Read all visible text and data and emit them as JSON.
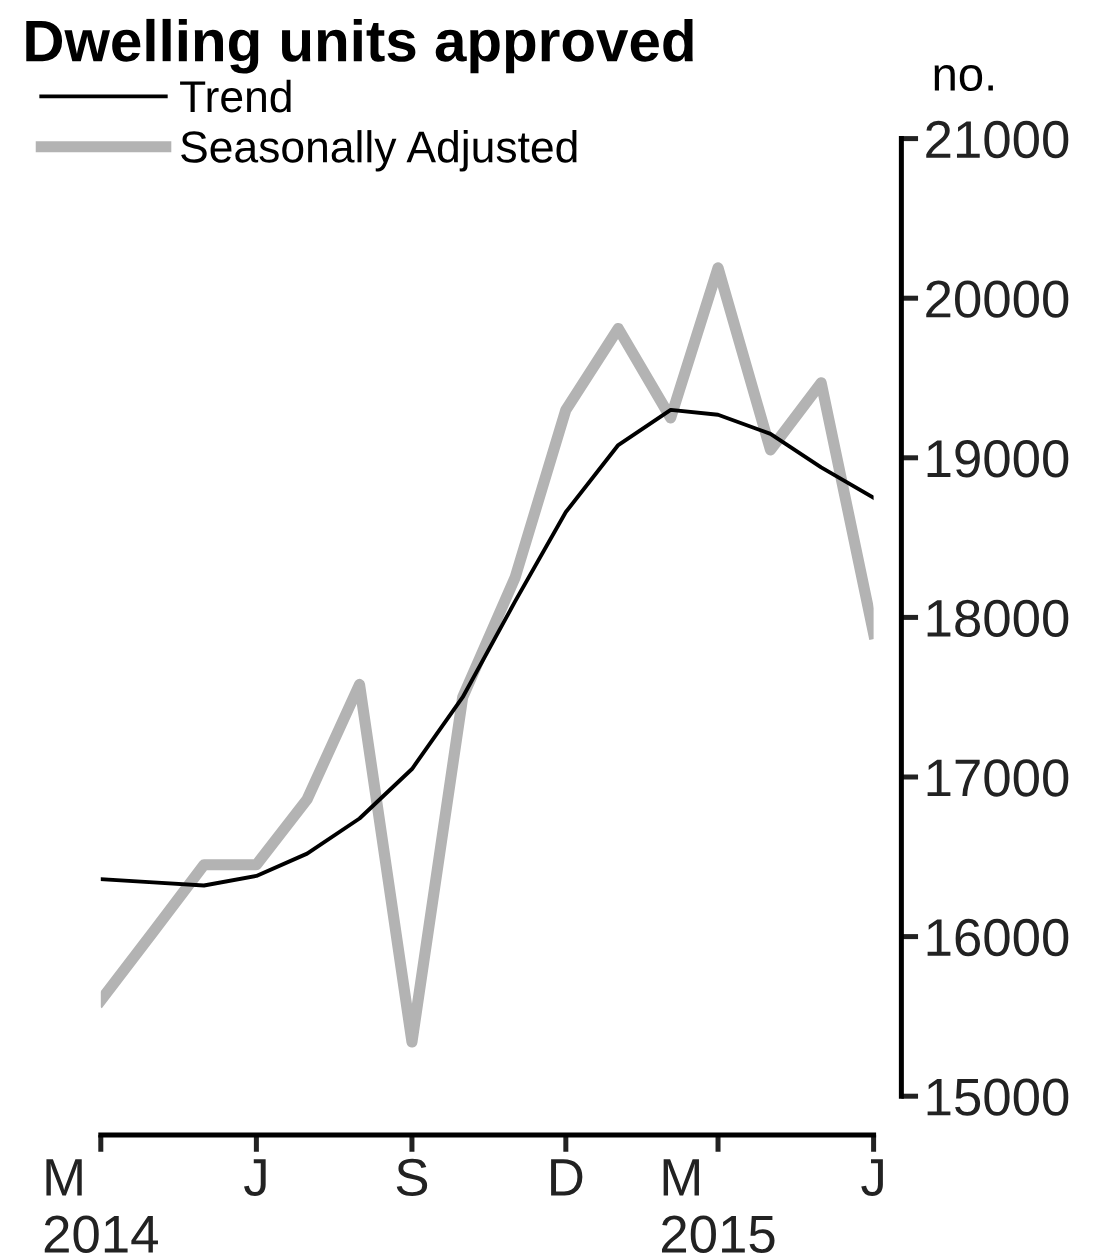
{
  "chart_data": {
    "type": "line",
    "title": "Dwelling units approved",
    "ylabel": "no.",
    "x": [
      "2014-03",
      "2014-04",
      "2014-05",
      "2014-06",
      "2014-07",
      "2014-08",
      "2014-09",
      "2014-10",
      "2014-11",
      "2014-12",
      "2015-01",
      "2015-02",
      "2015-03",
      "2015-04",
      "2015-05",
      "2015-06"
    ],
    "series": [
      {
        "name": "Trend",
        "color": "#000000",
        "values": [
          16360,
          16340,
          16320,
          16380,
          16520,
          16740,
          17050,
          17500,
          18100,
          18660,
          19080,
          19300,
          19270,
          19150,
          18940,
          18750
        ]
      },
      {
        "name": "Seasonally Adjusted",
        "color": "#b3b3b3",
        "values": [
          15600,
          16030,
          16450,
          16450,
          16860,
          17580,
          15340,
          17500,
          18250,
          19300,
          19810,
          19250,
          20190,
          19050,
          19470,
          17900
        ]
      }
    ],
    "xlim": [
      "2014-03",
      "2015-06"
    ],
    "xticks": [
      {
        "value": "2014-03",
        "label": "M\n2014"
      },
      {
        "value": "2014-06",
        "label": "J"
      },
      {
        "value": "2014-09",
        "label": "S"
      },
      {
        "value": "2014-12",
        "label": "D"
      },
      {
        "value": "2015-03",
        "label": "M\n2015"
      },
      {
        "value": "2015-06",
        "label": "J"
      }
    ],
    "ylim": [
      15000,
      21000
    ],
    "yticks": [
      15000,
      16000,
      17000,
      18000,
      19000,
      20000,
      21000
    ],
    "grid": false,
    "legend": "top left",
    "marker": "none",
    "line_style": "solid"
  }
}
